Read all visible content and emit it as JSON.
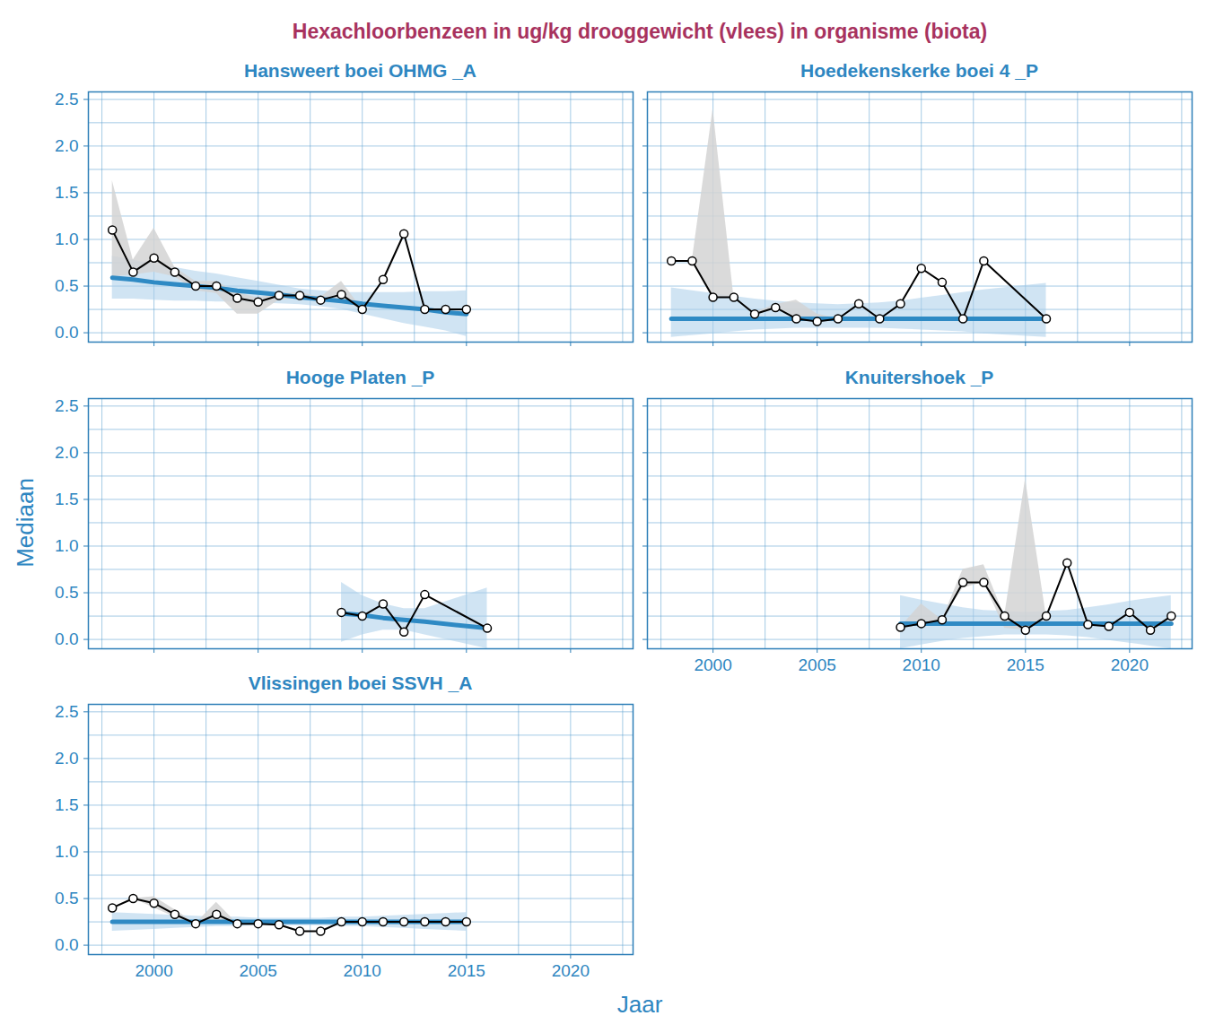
{
  "chart_data": {
    "type": "line",
    "title": "Hexachloorbenzeen in ug/kg drooggewicht (vlees) in organisme (biota)",
    "x_label": "Jaar",
    "y_label": "Mediaan",
    "xlim": [
      1996.85,
      2023.0
    ],
    "ylim": [
      -0.1,
      2.58
    ],
    "xticks": [
      2000,
      2005,
      2010,
      2015,
      2020
    ],
    "yticks": [
      {
        "value": 0,
        "label": "0.0"
      },
      {
        "value": 0.5,
        "label": "0.5"
      },
      {
        "value": 1,
        "label": "1.0"
      },
      {
        "value": 1.5,
        "label": "1.5"
      },
      {
        "value": 2,
        "label": "2.0"
      },
      {
        "value": 2.5,
        "label": "2.5"
      }
    ],
    "grid": true,
    "marker": "circle",
    "panels": [
      {
        "name": "Hansweert boei OHMG _A",
        "tick_labels": "y",
        "x": [
          1998,
          1999,
          2000,
          2001,
          2002,
          2003,
          2004,
          2005,
          2006,
          2007,
          2008,
          2009,
          2010,
          2011,
          2012,
          2013,
          2014,
          2015
        ],
        "values": [
          1.1,
          0.65,
          0.8,
          0.65,
          0.5,
          0.5,
          0.37,
          0.33,
          0.4,
          0.4,
          0.35,
          0.41,
          0.25,
          0.57,
          1.06,
          0.25,
          0.25,
          0.25
        ],
        "range_low": [
          0.6,
          0.62,
          0.65,
          0.6,
          0.45,
          0.42,
          0.2,
          0.2,
          0.35,
          0.37,
          0.33,
          0.35,
          0.25,
          0.57,
          1.06,
          0.25,
          0.25,
          0.25
        ],
        "range_high": [
          1.63,
          0.78,
          1.12,
          0.7,
          0.55,
          0.55,
          0.43,
          0.37,
          0.42,
          0.43,
          0.38,
          0.55,
          0.25,
          0.57,
          1.06,
          0.25,
          0.25,
          0.25
        ],
        "trend": [
          0.59,
          0.57,
          0.54,
          0.52,
          0.5,
          0.48,
          0.45,
          0.43,
          0.41,
          0.38,
          0.36,
          0.34,
          0.31,
          0.29,
          0.27,
          0.25,
          0.22,
          0.2
        ],
        "trend_low": [
          0.36,
          0.36,
          0.35,
          0.34,
          0.34,
          0.33,
          0.33,
          0.32,
          0.31,
          0.3,
          0.28,
          0.25,
          0.2,
          0.15,
          0.1,
          0.06,
          0.02,
          -0.04
        ],
        "trend_high": [
          0.82,
          0.78,
          0.73,
          0.7,
          0.66,
          0.63,
          0.59,
          0.55,
          0.51,
          0.47,
          0.45,
          0.43,
          0.43,
          0.43,
          0.43,
          0.44,
          0.44,
          0.45
        ]
      },
      {
        "name": "Hoedekenskerke boei 4 _P",
        "tick_labels": false,
        "x": [
          1998,
          1999,
          2000,
          2001,
          2002,
          2003,
          2004,
          2005,
          2006,
          2007,
          2008,
          2009,
          2010,
          2011,
          2012,
          2013,
          2016
        ],
        "values": [
          0.77,
          0.77,
          0.38,
          0.38,
          0.2,
          0.27,
          0.15,
          0.12,
          0.15,
          0.31,
          0.15,
          0.31,
          0.69,
          0.54,
          0.15,
          0.77,
          0.15
        ],
        "range_low": [
          0.77,
          0.77,
          0.38,
          0.38,
          0.2,
          0.27,
          0.15,
          0.12,
          0.15,
          0.31,
          0.15,
          0.31,
          0.69,
          0.54,
          0.15,
          0.77,
          0.15
        ],
        "range_high": [
          0.77,
          0.77,
          2.4,
          0.38,
          0.22,
          0.3,
          0.35,
          0.2,
          0.15,
          0.31,
          0.15,
          0.31,
          0.69,
          0.54,
          0.15,
          0.77,
          0.15
        ],
        "trend": [
          0.15,
          0.15,
          0.15,
          0.15,
          0.15,
          0.15,
          0.15,
          0.15,
          0.15,
          0.15,
          0.15,
          0.15,
          0.15,
          0.15,
          0.15,
          0.15,
          0.15
        ],
        "trend_low": [
          -0.05,
          -0.03,
          -0.01,
          0.01,
          0.03,
          0.04,
          0.05,
          0.05,
          0.05,
          0.05,
          0.05,
          0.04,
          0.03,
          0.02,
          0.01,
          -0.01,
          -0.05
        ],
        "trend_high": [
          0.48,
          0.45,
          0.42,
          0.39,
          0.36,
          0.34,
          0.32,
          0.31,
          0.3,
          0.31,
          0.32,
          0.34,
          0.37,
          0.4,
          0.43,
          0.46,
          0.53
        ]
      },
      {
        "name": "Hooge Platen _P",
        "tick_labels": "y",
        "x": [
          2009,
          2010,
          2011,
          2012,
          2013,
          2016
        ],
        "values": [
          0.29,
          0.25,
          0.38,
          0.08,
          0.48,
          0.12
        ],
        "range_low": [
          0.29,
          0.25,
          0.38,
          0.08,
          0.48,
          0.12
        ],
        "range_high": [
          0.29,
          0.25,
          0.38,
          0.08,
          0.48,
          0.12
        ],
        "trend": [
          0.28,
          0.26,
          0.23,
          0.21,
          0.19,
          0.12
        ],
        "trend_low": [
          -0.03,
          0.05,
          0.1,
          0.1,
          0.05,
          -0.1
        ],
        "trend_high": [
          0.61,
          0.47,
          0.38,
          0.33,
          0.33,
          0.55
        ]
      },
      {
        "name": "Knuitershoek _P",
        "tick_labels": "x",
        "x": [
          2009,
          2010,
          2011,
          2012,
          2013,
          2014,
          2015,
          2016,
          2017,
          2018,
          2019,
          2020,
          2021,
          2022
        ],
        "values": [
          0.13,
          0.17,
          0.21,
          0.61,
          0.61,
          0.25,
          0.1,
          0.25,
          0.82,
          0.16,
          0.14,
          0.29,
          0.1,
          0.25
        ],
        "range_low": [
          0.13,
          0.17,
          0.21,
          0.55,
          0.61,
          0.12,
          0.1,
          0.25,
          0.82,
          0.16,
          0.14,
          0.29,
          0.1,
          0.25
        ],
        "range_high": [
          0.13,
          0.38,
          0.21,
          0.75,
          0.8,
          0.25,
          1.72,
          0.25,
          0.82,
          0.16,
          0.14,
          0.29,
          0.1,
          0.25
        ],
        "trend": [
          0.17,
          0.17,
          0.17,
          0.17,
          0.17,
          0.17,
          0.17,
          0.17,
          0.17,
          0.17,
          0.17,
          0.17,
          0.17,
          0.17
        ],
        "trend_low": [
          -0.1,
          -0.06,
          -0.02,
          0.01,
          0.03,
          0.05,
          0.05,
          0.05,
          0.04,
          0.02,
          -0.01,
          -0.04,
          -0.07,
          -0.1
        ],
        "trend_high": [
          0.47,
          0.42,
          0.38,
          0.34,
          0.31,
          0.3,
          0.29,
          0.3,
          0.31,
          0.34,
          0.37,
          0.41,
          0.44,
          0.47
        ]
      },
      {
        "name": "Vlissingen boei SSVH _A",
        "tick_labels": true,
        "x": [
          1998,
          1999,
          2000,
          2001,
          2002,
          2003,
          2004,
          2005,
          2006,
          2007,
          2008,
          2009,
          2010,
          2011,
          2012,
          2013,
          2014,
          2015
        ],
        "values": [
          0.4,
          0.5,
          0.45,
          0.33,
          0.23,
          0.33,
          0.23,
          0.23,
          0.22,
          0.15,
          0.15,
          0.25,
          0.25,
          0.25,
          0.25,
          0.25,
          0.25,
          0.25
        ],
        "range_low": [
          0.4,
          0.5,
          0.4,
          0.3,
          0.23,
          0.27,
          0.23,
          0.23,
          0.22,
          0.15,
          0.15,
          0.25,
          0.25,
          0.25,
          0.25,
          0.25,
          0.25,
          0.25
        ],
        "range_high": [
          0.4,
          0.5,
          0.52,
          0.38,
          0.23,
          0.46,
          0.23,
          0.23,
          0.22,
          0.15,
          0.15,
          0.25,
          0.25,
          0.25,
          0.25,
          0.25,
          0.25,
          0.25
        ],
        "trend": [
          0.25,
          0.25,
          0.25,
          0.25,
          0.25,
          0.25,
          0.25,
          0.25,
          0.25,
          0.25,
          0.25,
          0.25,
          0.25,
          0.25,
          0.25,
          0.25,
          0.25,
          0.25
        ],
        "trend_low": [
          0.15,
          0.16,
          0.17,
          0.18,
          0.19,
          0.2,
          0.2,
          0.21,
          0.21,
          0.21,
          0.21,
          0.2,
          0.2,
          0.19,
          0.18,
          0.17,
          0.16,
          0.15
        ],
        "trend_high": [
          0.35,
          0.34,
          0.33,
          0.32,
          0.31,
          0.3,
          0.3,
          0.29,
          0.29,
          0.29,
          0.29,
          0.3,
          0.3,
          0.31,
          0.32,
          0.33,
          0.34,
          0.35
        ]
      }
    ]
  }
}
